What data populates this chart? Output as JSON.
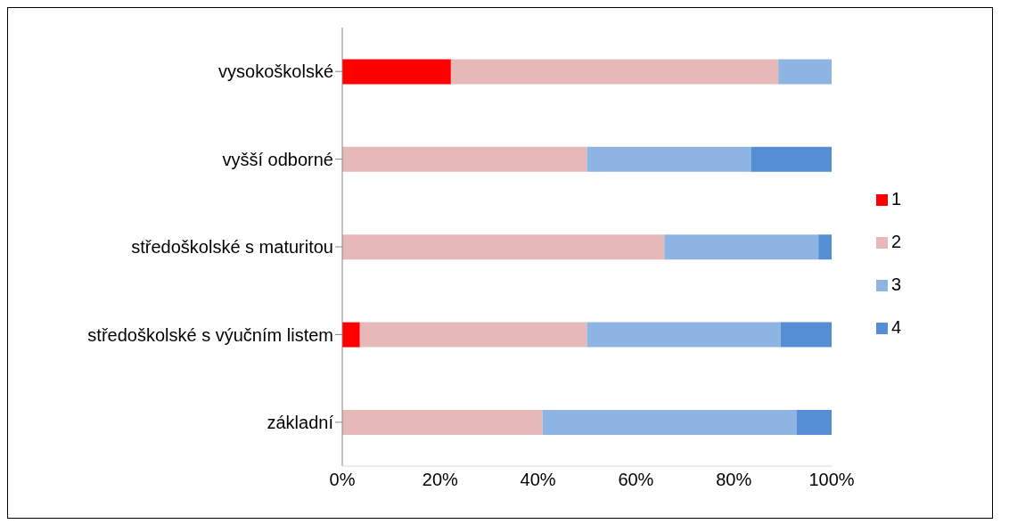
{
  "chart_data": {
    "type": "bar",
    "orientation": "horizontal",
    "stacked": true,
    "categories": [
      "vysokoškolské",
      "vyšší odborné",
      "středoškolské s maturitou",
      "středoškolské s výučním listem",
      "základní"
    ],
    "series": [
      {
        "name": "1",
        "color": "#ff0000",
        "values": [
          22.2,
          0,
          0,
          3.6,
          0
        ]
      },
      {
        "name": "2",
        "color": "#e6b9b8",
        "values": [
          66.9,
          50,
          65.8,
          46.4,
          40.9
        ]
      },
      {
        "name": "3",
        "color": "#8eb4e3",
        "values": [
          10.9,
          33.5,
          31.5,
          39.6,
          51.9
        ]
      },
      {
        "name": "4",
        "color": "#558ed5",
        "values": [
          0,
          16.5,
          2.7,
          10.4,
          7.2
        ]
      }
    ],
    "xlim": [
      0,
      100
    ],
    "xticks": [
      {
        "value": 0,
        "label": "0%"
      },
      {
        "value": 20,
        "label": "20%"
      },
      {
        "value": 40,
        "label": "40%"
      },
      {
        "value": 60,
        "label": "60%"
      },
      {
        "value": 80,
        "label": "80%"
      },
      {
        "value": 100,
        "label": "100%"
      }
    ],
    "grid": false,
    "legend": "right"
  }
}
